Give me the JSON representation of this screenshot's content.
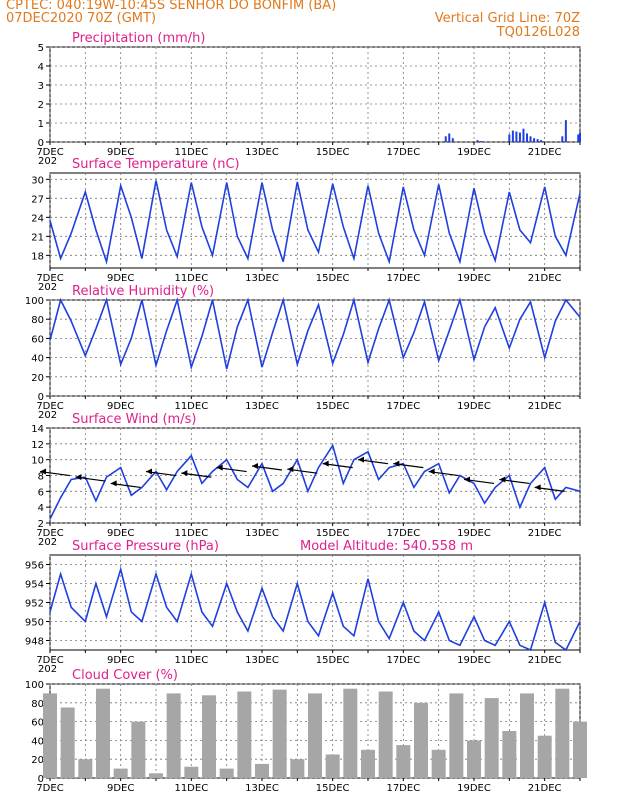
{
  "header": {
    "line1": "CPTEC:   040:19W-10:45S   SENHOR DO BONFIM (BA)",
    "line2_left": "07DEC2020 70Z (GMT)",
    "line2_right": "Vertical Grid Line: 70Z",
    "line3_right": "TQ0126L028"
  },
  "x_axis": {
    "labels": [
      "7DEC",
      "9DEC",
      "11DEC",
      "13DEC",
      "15DEC",
      "17DEC",
      "19DEC",
      "21DEC"
    ],
    "label_positions_days": [
      0,
      2,
      4,
      6,
      8,
      10,
      12,
      14
    ],
    "range_days": [
      0,
      15
    ],
    "partial_label": "202"
  },
  "colors": {
    "line": "#1f3fe0",
    "bar": "#a6a6a6",
    "title": "#e0208c",
    "header": "#e07a1e"
  },
  "chart_data": [
    {
      "type": "bar",
      "title": "Precipitation (mm/h)",
      "ylim": [
        0,
        5
      ],
      "yticks": [
        0,
        1,
        2,
        3,
        4,
        5
      ],
      "grid": true,
      "x_days": [
        11.2,
        11.3,
        11.4,
        12.1,
        12.2,
        13.0,
        13.1,
        13.2,
        13.3,
        13.4,
        13.5,
        13.6,
        13.7,
        13.8,
        13.9,
        14.5,
        14.6,
        14.95,
        15.0
      ],
      "values": [
        0.3,
        0.45,
        0.2,
        0.1,
        0.05,
        0.4,
        0.6,
        0.55,
        0.5,
        0.7,
        0.45,
        0.3,
        0.2,
        0.15,
        0.1,
        0.3,
        1.15,
        0.4,
        0.5
      ]
    },
    {
      "type": "line",
      "title": "Surface Temperature (nC)",
      "ylim": [
        16,
        31
      ],
      "yticks": [
        18,
        21,
        24,
        27,
        30
      ],
      "grid": true,
      "x_days": [
        0,
        0.3,
        0.6,
        1.0,
        1.3,
        1.6,
        2.0,
        2.3,
        2.6,
        3.0,
        3.3,
        3.6,
        4.0,
        4.3,
        4.6,
        5.0,
        5.3,
        5.6,
        6.0,
        6.3,
        6.6,
        7.0,
        7.3,
        7.6,
        8.0,
        8.3,
        8.6,
        9.0,
        9.3,
        9.6,
        10.0,
        10.3,
        10.6,
        11.0,
        11.3,
        11.6,
        12.0,
        12.3,
        12.6,
        13.0,
        13.3,
        13.6,
        14.0,
        14.3,
        14.6,
        15.0
      ],
      "values": [
        23.5,
        17.5,
        21.5,
        28.0,
        22.0,
        17.0,
        29.0,
        24.0,
        17.5,
        29.8,
        22.0,
        17.8,
        29.5,
        22.5,
        18.0,
        29.5,
        21.0,
        17.5,
        29.5,
        22.0,
        17.0,
        29.6,
        22.0,
        18.5,
        29.3,
        22.5,
        17.5,
        29.0,
        21.5,
        17.0,
        28.8,
        22.0,
        18.0,
        29.2,
        21.5,
        17.0,
        28.6,
        21.5,
        17.2,
        28.0,
        22.0,
        20.0,
        28.8,
        21.0,
        18.0,
        27.8
      ]
    },
    {
      "type": "line",
      "title": "Relative Humidity (%)",
      "ylim": [
        0,
        100
      ],
      "yticks": [
        0,
        20,
        40,
        60,
        80,
        100
      ],
      "grid": true,
      "x_days": [
        0,
        0.3,
        0.6,
        1.0,
        1.3,
        1.6,
        2.0,
        2.3,
        2.6,
        3.0,
        3.3,
        3.6,
        4.0,
        4.3,
        4.6,
        5.0,
        5.3,
        5.6,
        6.0,
        6.3,
        6.6,
        7.0,
        7.3,
        7.6,
        8.0,
        8.3,
        8.6,
        9.0,
        9.3,
        9.6,
        10.0,
        10.3,
        10.6,
        11.0,
        11.3,
        11.6,
        12.0,
        12.3,
        12.6,
        13.0,
        13.3,
        13.6,
        14.0,
        14.3,
        14.6,
        15.0
      ],
      "values": [
        58,
        100,
        78,
        42,
        70,
        100,
        33,
        60,
        100,
        32,
        68,
        100,
        30,
        62,
        100,
        28,
        72,
        100,
        30,
        66,
        100,
        33,
        68,
        95,
        34,
        64,
        100,
        35,
        70,
        100,
        40,
        66,
        98,
        37,
        68,
        100,
        38,
        72,
        92,
        50,
        80,
        98,
        40,
        78,
        100,
        82
      ]
    },
    {
      "type": "line",
      "title": "Surface Wind (m/s)",
      "ylim": [
        2,
        14
      ],
      "yticks": [
        2,
        4,
        6,
        8,
        10,
        12,
        14
      ],
      "grid": true,
      "x_days": [
        0,
        0.3,
        0.6,
        1.0,
        1.3,
        1.6,
        2.0,
        2.3,
        2.6,
        3.0,
        3.3,
        3.6,
        4.0,
        4.3,
        4.6,
        5.0,
        5.3,
        5.6,
        6.0,
        6.3,
        6.6,
        7.0,
        7.3,
        7.6,
        8.0,
        8.3,
        8.6,
        9.0,
        9.3,
        9.6,
        10.0,
        10.3,
        10.6,
        11.0,
        11.3,
        11.6,
        12.0,
        12.3,
        12.6,
        13.0,
        13.3,
        13.6,
        14.0,
        14.3,
        14.6,
        15.0
      ],
      "values": [
        2.5,
        5.2,
        7.5,
        7.8,
        4.8,
        7.8,
        9.0,
        5.5,
        6.5,
        8.5,
        6.2,
        8.5,
        10.5,
        7.0,
        8.5,
        10.0,
        7.5,
        6.5,
        9.5,
        6.0,
        7.0,
        10.0,
        6.0,
        9.0,
        11.8,
        7.0,
        10.0,
        11.0,
        7.5,
        9.0,
        9.5,
        6.5,
        8.5,
        9.5,
        5.8,
        8.0,
        7.0,
        4.5,
        6.5,
        8.0,
        4.0,
        7.0,
        9.0,
        5.0,
        6.5,
        6.0
      ],
      "wind_vectors_day": [
        0.0,
        1.0,
        2.0,
        3.0,
        4.0,
        5.0,
        6.0,
        7.0,
        8.0,
        9.0,
        10.0,
        11.0,
        12.0,
        13.0,
        14.0
      ],
      "wind_vectors_level": [
        8.5,
        7.8,
        7.0,
        8.5,
        8.3,
        9.0,
        9.2,
        8.8,
        9.5,
        10.0,
        9.5,
        8.5,
        7.5,
        7.5,
        6.5
      ]
    },
    {
      "type": "line",
      "title": "Surface Pressure (hPa)",
      "annotation": "Model Altitude: 540.558  m",
      "ylim": [
        947,
        957
      ],
      "yticks": [
        948,
        950,
        952,
        954,
        956
      ],
      "grid": true,
      "x_days": [
        0,
        0.3,
        0.6,
        1.0,
        1.3,
        1.6,
        2.0,
        2.3,
        2.6,
        3.0,
        3.3,
        3.6,
        4.0,
        4.3,
        4.6,
        5.0,
        5.3,
        5.6,
        6.0,
        6.3,
        6.6,
        7.0,
        7.3,
        7.6,
        8.0,
        8.3,
        8.6,
        9.0,
        9.3,
        9.6,
        10.0,
        10.3,
        10.6,
        11.0,
        11.3,
        11.6,
        12.0,
        12.3,
        12.6,
        13.0,
        13.3,
        13.6,
        14.0,
        14.3,
        14.6,
        15.0
      ],
      "values": [
        951.0,
        955.0,
        951.5,
        950.0,
        954.0,
        950.5,
        955.5,
        951.0,
        950.0,
        955.0,
        951.5,
        950.0,
        955.0,
        951.0,
        949.5,
        954.0,
        951.0,
        949.0,
        953.5,
        950.5,
        949.0,
        954.0,
        950.0,
        948.5,
        953.0,
        949.5,
        948.5,
        954.5,
        950.0,
        948.2,
        952.0,
        949.0,
        948.0,
        951.0,
        948.0,
        947.5,
        950.5,
        948.0,
        947.5,
        950.0,
        947.5,
        947.0,
        952.0,
        947.8,
        947.0,
        950.0
      ]
    },
    {
      "type": "bar",
      "title": "Cloud Cover (%)",
      "ylim": [
        0,
        100
      ],
      "yticks": [
        0,
        20,
        40,
        60,
        80,
        100
      ],
      "grid": true,
      "x_days": [
        0.0,
        0.5,
        1.0,
        1.5,
        2.0,
        2.5,
        3.0,
        3.5,
        4.0,
        4.5,
        5.0,
        5.5,
        6.0,
        6.5,
        7.0,
        7.5,
        8.0,
        8.5,
        9.0,
        9.5,
        10.0,
        10.5,
        11.0,
        11.5,
        12.0,
        12.5,
        13.0,
        13.5,
        14.0,
        14.5,
        15.0
      ],
      "values": [
        90,
        75,
        20,
        95,
        10,
        60,
        5,
        90,
        12,
        88,
        10,
        92,
        15,
        94,
        20,
        90,
        25,
        95,
        30,
        92,
        35,
        80,
        30,
        90,
        40,
        85,
        50,
        90,
        45,
        95,
        60
      ]
    }
  ]
}
